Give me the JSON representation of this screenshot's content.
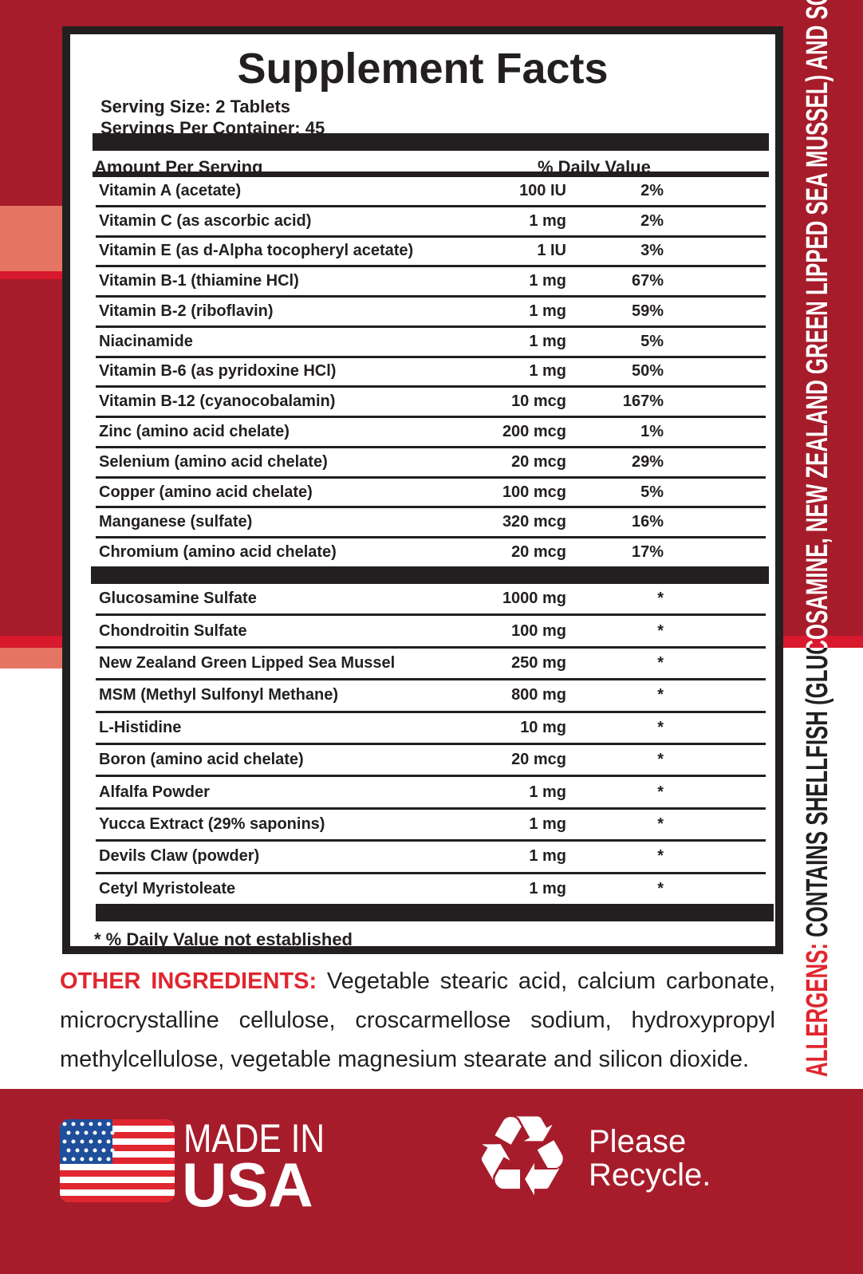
{
  "colors": {
    "brand_red": "#a61c2b",
    "accent_red": "#d8192e",
    "salmon": "#e57563",
    "allergen_red": "#e0262f",
    "ink": "#231f20"
  },
  "facts": {
    "title": "Supplement Facts",
    "serving_size": "Serving Size: 2 Tablets",
    "servings_per_container": "Servings Per Container: 45",
    "amount_header": "Amount Per Serving",
    "dv_header": "% Daily Value",
    "vitamins": [
      {
        "name": "Vitamin A (acetate)",
        "amount": "100 IU",
        "dv": "2%"
      },
      {
        "name": "Vitamin C (as ascorbic acid)",
        "amount": "1 mg",
        "dv": "2%"
      },
      {
        "name": "Vitamin E (as d-Alpha tocopheryl acetate)",
        "amount": "1 IU",
        "dv": "3%"
      },
      {
        "name": "Vitamin B-1 (thiamine HCl)",
        "amount": "1 mg",
        "dv": "67%"
      },
      {
        "name": "Vitamin B-2 (riboflavin)",
        "amount": "1 mg",
        "dv": "59%"
      },
      {
        "name": "Niacinamide",
        "amount": "1 mg",
        "dv": "5%"
      },
      {
        "name": "Vitamin B-6 (as pyridoxine HCl)",
        "amount": "1 mg",
        "dv": "50%"
      },
      {
        "name": "Vitamin B-12 (cyanocobalamin)",
        "amount": "10 mcg",
        "dv": "167%"
      },
      {
        "name": "Zinc (amino acid chelate)",
        "amount": "200 mcg",
        "dv": "1%"
      },
      {
        "name": "Selenium (amino acid chelate)",
        "amount": "20 mcg",
        "dv": "29%"
      },
      {
        "name": "Copper (amino acid chelate)",
        "amount": "100 mcg",
        "dv": "5%"
      },
      {
        "name": "Manganese (sulfate)",
        "amount": "320 mcg",
        "dv": "16%"
      },
      {
        "name": "Chromium (amino acid chelate)",
        "amount": "20 mcg",
        "dv": "17%"
      }
    ],
    "others": [
      {
        "name": "Glucosamine Sulfate",
        "amount": "1000 mg",
        "dv": "*"
      },
      {
        "name": "Chondroitin Sulfate",
        "amount": "100 mg",
        "dv": "*"
      },
      {
        "name": "New Zealand Green Lipped Sea Mussel",
        "amount": "250 mg",
        "dv": "*"
      },
      {
        "name": "MSM (Methyl Sulfonyl Methane)",
        "amount": "800 mg",
        "dv": "*"
      },
      {
        "name": "L-Histidine",
        "amount": "10 mg",
        "dv": "*"
      },
      {
        "name": "Boron (amino acid chelate)",
        "amount": "20 mcg",
        "dv": "*"
      },
      {
        "name": "Alfalfa Powder",
        "amount": "1 mg",
        "dv": "*"
      },
      {
        "name": "Yucca Extract (29% saponins)",
        "amount": "1 mg",
        "dv": "*"
      },
      {
        "name": "Devils Claw (powder)",
        "amount": "1 mg",
        "dv": "*"
      },
      {
        "name": "Cetyl Myristoleate",
        "amount": "1 mg",
        "dv": "*"
      }
    ],
    "footnote": "* % Daily Value not established"
  },
  "other_ingredients": {
    "label": "OTHER INGREDIENTS:",
    "text": "Vegetable stearic acid, calcium carbonate, microcrystalline cellulose, croscarmellose sodium, hydroxypropyl methylcellulose, vegetable magnesium stearate and silicon dioxide."
  },
  "allergens": {
    "label": "ALLERGENS:",
    "text": "CONTAINS SHELLFISH (GLUCOSAMINE, NEW ZEALAND GREEN LIPPED SEA MUSSEL) AND SOY."
  },
  "footer": {
    "made_in": "MADE IN",
    "usa": "USA",
    "flag_icon": "us-flag-icon",
    "recycle_icon": "recycle-icon",
    "recycle_line1": "Please",
    "recycle_line2": "Recycle."
  }
}
